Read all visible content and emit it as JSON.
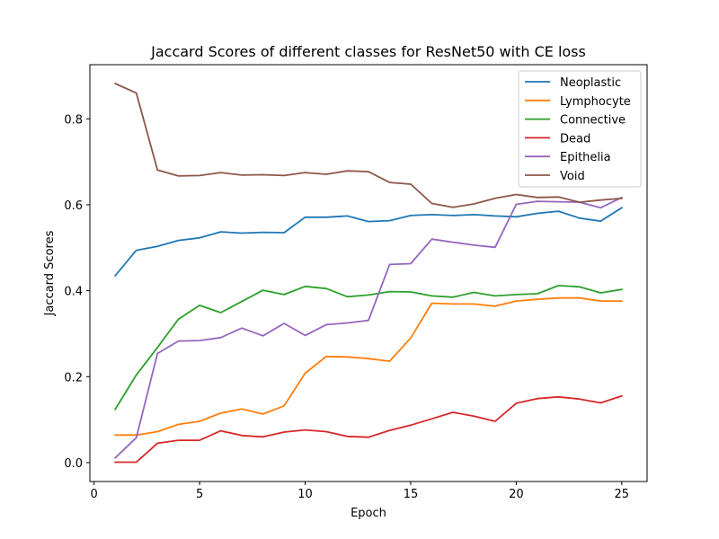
{
  "chart_data": {
    "type": "line",
    "title": "Jaccard Scores of different classes for ResNet50 with CE loss",
    "xlabel": "Epoch",
    "ylabel": "Jaccard Scores",
    "xlim": [
      -0.2,
      26.2
    ],
    "ylim": [
      -0.044,
      0.926
    ],
    "xticks": [
      0,
      5,
      10,
      15,
      20,
      25
    ],
    "yticks": [
      0.0,
      0.2,
      0.4,
      0.6,
      0.8
    ],
    "xtick_labels": [
      "0",
      "5",
      "10",
      "15",
      "20",
      "25"
    ],
    "ytick_labels": [
      "0.0",
      "0.2",
      "0.4",
      "0.6",
      "0.8"
    ],
    "grid": false,
    "legend_position": "top-right",
    "x": [
      1,
      2,
      3,
      4,
      5,
      6,
      7,
      8,
      9,
      10,
      11,
      12,
      13,
      14,
      15,
      16,
      17,
      18,
      19,
      20,
      21,
      22,
      23,
      24,
      25
    ],
    "series": [
      {
        "name": "Neoplastic",
        "color": "#1f77b4",
        "values": [
          0.435,
          0.494,
          0.503,
          0.517,
          0.523,
          0.537,
          0.534,
          0.536,
          0.535,
          0.571,
          0.571,
          0.574,
          0.561,
          0.563,
          0.575,
          0.577,
          0.575,
          0.577,
          0.574,
          0.572,
          0.58,
          0.585,
          0.569,
          0.562,
          0.593
        ]
      },
      {
        "name": "Lymphocyte",
        "color": "#ff7f0e",
        "values": [
          0.064,
          0.064,
          0.072,
          0.089,
          0.096,
          0.115,
          0.125,
          0.113,
          0.132,
          0.208,
          0.247,
          0.246,
          0.242,
          0.236,
          0.29,
          0.371,
          0.369,
          0.369,
          0.364,
          0.376,
          0.38,
          0.383,
          0.383,
          0.376,
          0.376
        ]
      },
      {
        "name": "Connective",
        "color": "#2ca02c",
        "values": [
          0.124,
          0.204,
          0.268,
          0.334,
          0.366,
          0.349,
          0.375,
          0.401,
          0.391,
          0.41,
          0.405,
          0.386,
          0.39,
          0.398,
          0.397,
          0.388,
          0.385,
          0.396,
          0.388,
          0.391,
          0.393,
          0.412,
          0.409,
          0.395,
          0.403
        ]
      },
      {
        "name": "Dead",
        "color": "#d62728",
        "values": [
          0.001,
          0.001,
          0.045,
          0.052,
          0.052,
          0.074,
          0.063,
          0.06,
          0.071,
          0.076,
          0.072,
          0.061,
          0.059,
          0.075,
          0.087,
          0.102,
          0.117,
          0.108,
          0.096,
          0.138,
          0.149,
          0.153,
          0.148,
          0.139,
          0.155
        ]
      },
      {
        "name": "Epithelia",
        "color": "#9467bd",
        "values": [
          0.011,
          0.058,
          0.254,
          0.283,
          0.284,
          0.291,
          0.313,
          0.295,
          0.324,
          0.296,
          0.321,
          0.325,
          0.331,
          0.461,
          0.463,
          0.52,
          0.513,
          0.506,
          0.501,
          0.601,
          0.608,
          0.607,
          0.606,
          0.593,
          0.617
        ]
      },
      {
        "name": "Void",
        "color": "#8c564b",
        "values": [
          0.882,
          0.86,
          0.681,
          0.667,
          0.668,
          0.675,
          0.669,
          0.67,
          0.668,
          0.675,
          0.671,
          0.679,
          0.677,
          0.652,
          0.648,
          0.603,
          0.594,
          0.602,
          0.615,
          0.624,
          0.617,
          0.618,
          0.606,
          0.611,
          0.615
        ]
      }
    ]
  }
}
